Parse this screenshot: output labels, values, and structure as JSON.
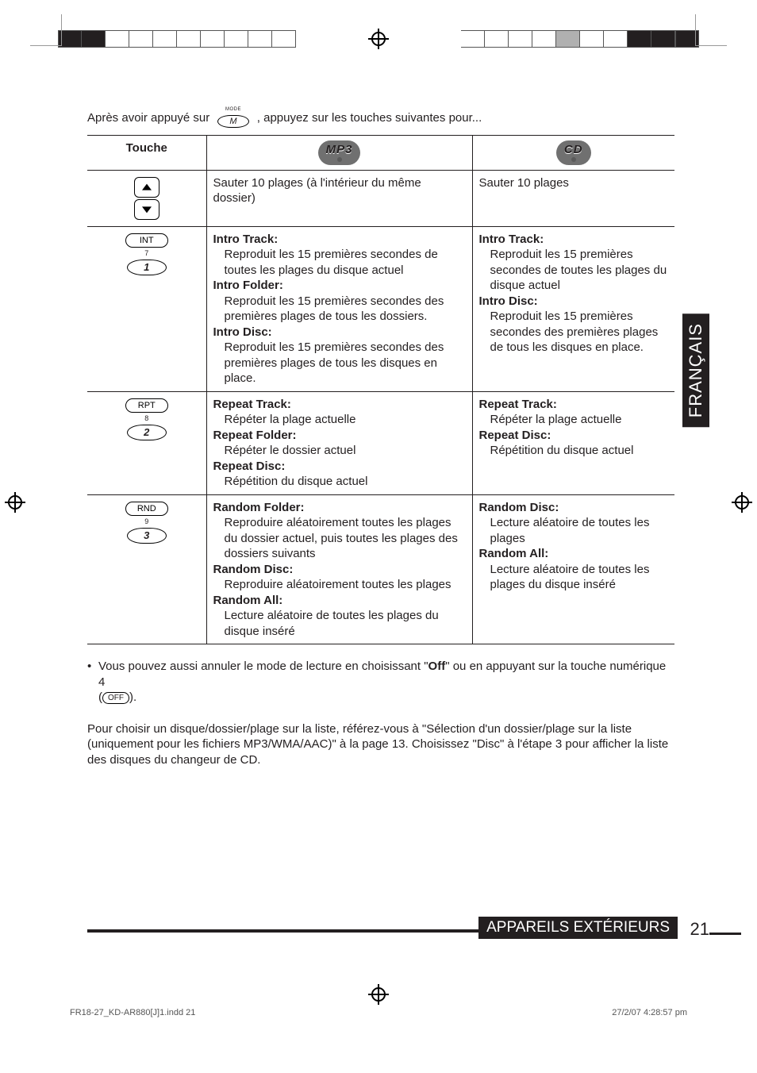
{
  "intro_prefix": "Après avoir appuyé sur",
  "intro_suffix": ", appuyez sur les touches suivantes pour...",
  "mode_small_label": "MODE",
  "mode_button_text": "M",
  "table": {
    "headers": {
      "touche": "Touche",
      "mp3": "MP3",
      "cd": "CD"
    },
    "row_arrows": {
      "mp3": "Sauter 10 plages (à l'intérieur du même dossier)",
      "cd": "Sauter 10 plages"
    },
    "row_int": {
      "button_label": "INT",
      "button_sub": "7",
      "button_num": "1",
      "mp3": {
        "h1": "Intro Track:",
        "t1": "Reproduit les 15 premières secondes de toutes les plages du disque actuel",
        "h2": "Intro Folder:",
        "t2": "Reproduit les 15 premières secondes des premières plages de tous les dossiers.",
        "h3": "Intro Disc:",
        "t3": "Reproduit les 15 premières secondes des premières plages de tous les disques en place."
      },
      "cd": {
        "h1": "Intro Track:",
        "t1": "Reproduit les 15 premières secondes de toutes les plages du disque actuel",
        "h2": "Intro Disc:",
        "t2": "Reproduit les 15 premières secondes des premières plages de tous les disques en place."
      }
    },
    "row_rpt": {
      "button_label": "RPT",
      "button_sub": "8",
      "button_num": "2",
      "mp3": {
        "h1": "Repeat Track:",
        "t1": "Répéter la plage actuelle",
        "h2": "Repeat Folder:",
        "t2": "Répéter le dossier actuel",
        "h3": "Repeat Disc:",
        "t3": "Répétition du disque actuel"
      },
      "cd": {
        "h1": "Repeat Track:",
        "t1": "Répéter la plage actuelle",
        "h2": "Repeat Disc:",
        "t2": "Répétition du disque actuel"
      }
    },
    "row_rnd": {
      "button_label": "RND",
      "button_sub": "9",
      "button_num": "3",
      "mp3": {
        "h1": "Random Folder:",
        "t1": "Reproduire aléatoirement toutes les plages du dossier actuel, puis toutes les plages des dossiers suivants",
        "h2": "Random Disc:",
        "t2": "Reproduire aléatoirement toutes les plages",
        "h3": "Random All:",
        "t3": "Lecture aléatoire de toutes les plages du disque inséré"
      },
      "cd": {
        "h1": "Random Disc:",
        "t1": "Lecture aléatoire de toutes les plages",
        "h2": "Random All:",
        "t2": "Lecture aléatoire de toutes les plages du disque inséré"
      }
    }
  },
  "note_line_pre": "Vous pouvez aussi annuler le mode de lecture en choisissant \"",
  "note_off": "Off",
  "note_line_post": "\" ou en appuyant sur la touche numérique 4",
  "note_line2_pre": "(",
  "note_off_pill": "OFF",
  "note_line2_post": ").",
  "para2": "Pour choisir un disque/dossier/plage sur la liste, référez-vous à \"Sélection d'un dossier/plage sur la liste (uniquement pour les fichiers MP3/WMA/AAC)\" à la page 13. Choisissez \"Disc\" à l'étape 3 pour afficher la liste des disques du changeur de CD.",
  "side_label": "FRANÇAIS",
  "footer_tag": "APPAREILS EXTÉRIEURS",
  "page_number": "21",
  "print_jobline_left": "FR18-27_KD-AR880[J]1.indd   21",
  "print_jobline_right": "27/2/07   4:28:57 pm"
}
